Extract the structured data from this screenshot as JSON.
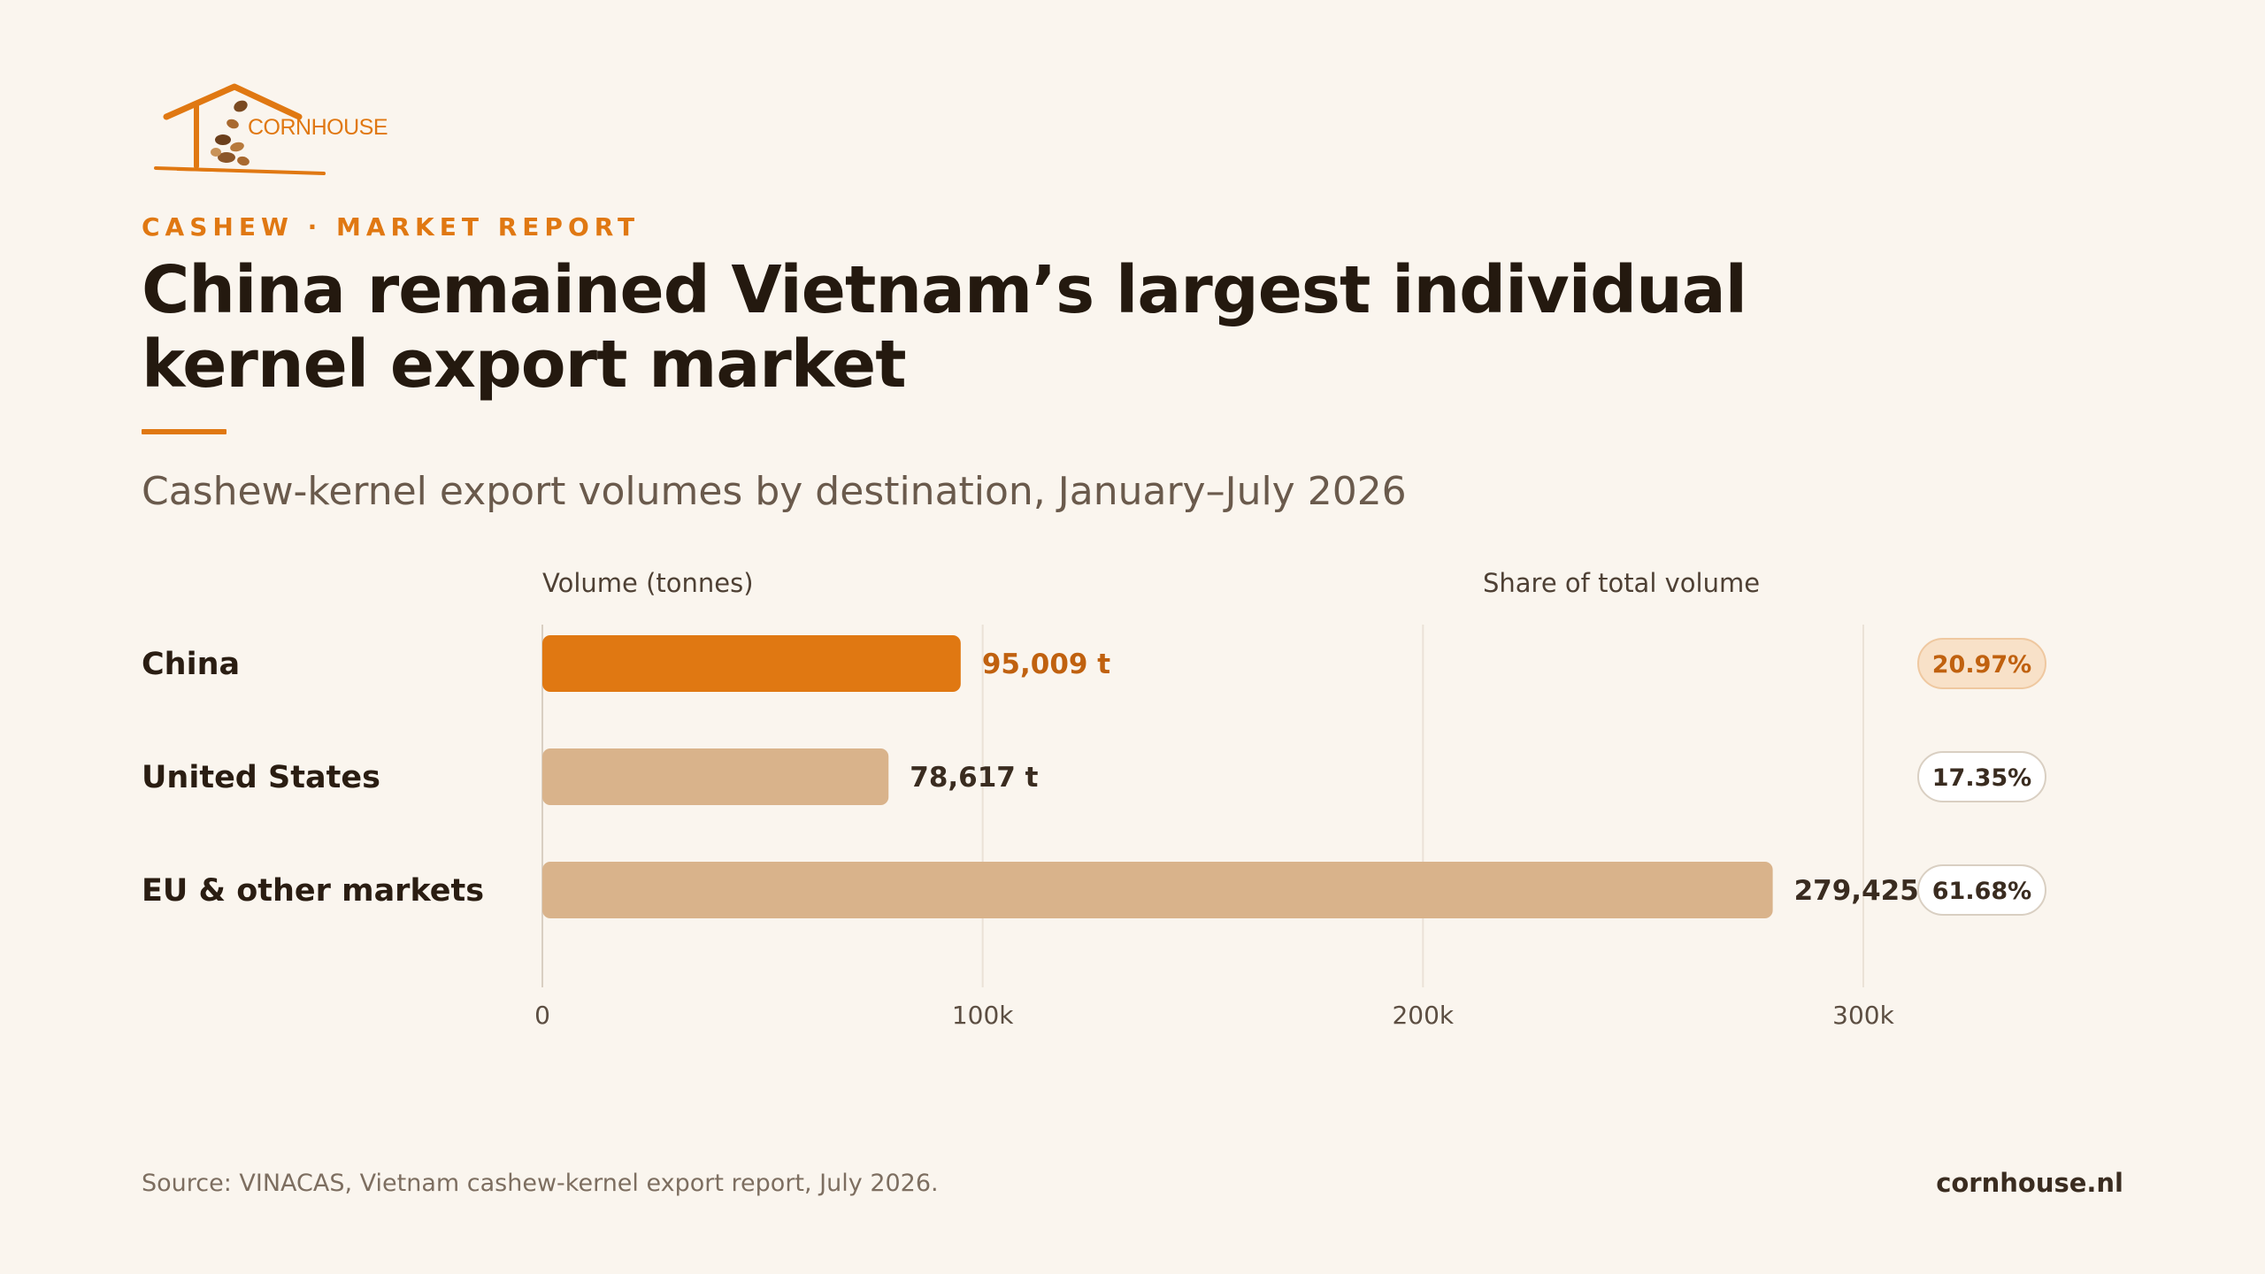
{
  "brand": {
    "logo_text": "CORNHOUSE",
    "logo_icon": "house-roof-with-nuts-icon",
    "accent_color": "#e07812",
    "accent_soft_color": "#d9b38b",
    "background_color": "#faf5ee"
  },
  "header": {
    "kicker": "CASHEW · MARKET REPORT",
    "title": "China remained Vietnam’s largest individual kernel export market",
    "subtitle": "Cashew-kernel export volumes by destination, January–July 2026"
  },
  "chart_data": {
    "type": "bar",
    "orientation": "horizontal",
    "volume_header": "Volume (tonnes)",
    "share_header": "Share of total volume",
    "categories": [
      "China",
      "United States",
      "EU & other markets"
    ],
    "values": [
      95009,
      78617,
      279425
    ],
    "value_labels": [
      "95,009 t",
      "78,617 t",
      "279,425 t"
    ],
    "shares": [
      "20.97%",
      "17.35%",
      "61.68%"
    ],
    "highlight_category": "China",
    "xlim": [
      0,
      300000
    ],
    "x_ticks": [
      0,
      100000,
      200000,
      300000
    ],
    "x_tick_labels": [
      "0",
      "100k",
      "200k",
      "300k"
    ],
    "grid": true,
    "colors": {
      "highlight": "#e07812",
      "default": "#d9b38b",
      "highlight_label": "#c0610f",
      "default_label": "#3a2c20"
    }
  },
  "footer": {
    "source": "Source: VINACAS, Vietnam cashew-kernel export report, July 2026.",
    "site": "cornhouse.nl"
  }
}
